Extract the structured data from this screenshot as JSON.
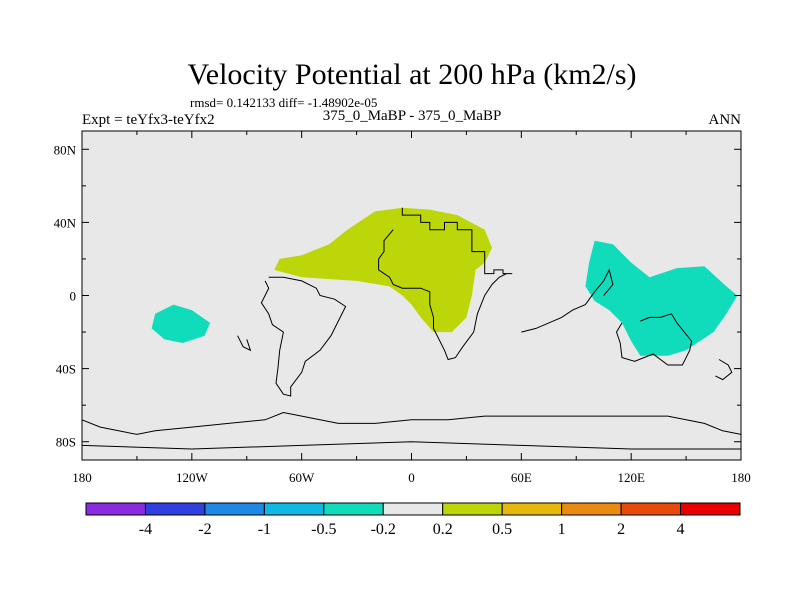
{
  "chart_data": {
    "type": "contour-map",
    "title": "Velocity Potential at 200 hPa (km2/s)",
    "stats": "rmsd= 0.142133 diff= -1.48902e-05",
    "left_label": "Expt = teYfx3-teYfx2",
    "center_label": "375_0_MaBP - 375_0_MaBP",
    "right_label": "ANN",
    "x_ticks": [
      {
        "value": -180,
        "label": "180"
      },
      {
        "value": -120,
        "label": "120W"
      },
      {
        "value": -60,
        "label": "60W"
      },
      {
        "value": 0,
        "label": "0"
      },
      {
        "value": 60,
        "label": "60E"
      },
      {
        "value": 120,
        "label": "120E"
      },
      {
        "value": 180,
        "label": "180"
      }
    ],
    "y_ticks": [
      {
        "value": 80,
        "label": "80N"
      },
      {
        "value": 40,
        "label": "40N"
      },
      {
        "value": 0,
        "label": "0"
      },
      {
        "value": -40,
        "label": "40S"
      },
      {
        "value": -80,
        "label": "80S"
      }
    ],
    "xlim": [
      -180,
      180
    ],
    "ylim": [
      -90,
      90
    ],
    "colorbar": {
      "colors": [
        "#8a2be2",
        "#2f3fe0",
        "#1e88e5",
        "#10b8e6",
        "#10dcbc",
        "#e8e8e8",
        "#bcd60a",
        "#e8b808",
        "#ea8a10",
        "#e84a0a",
        "#e80000"
      ],
      "levels": [
        "-4",
        "-2",
        "-1",
        "-0.5",
        "-0.2",
        "0.2",
        "0.5",
        "1",
        "2",
        "4"
      ]
    },
    "regions": [
      {
        "name": "positive-anomaly-africa-europe",
        "level": "0.2 to 0.5",
        "color": "#bcd60a",
        "lonlat": [
          [
            -45,
            28
          ],
          [
            -35,
            36
          ],
          [
            -20,
            46
          ],
          [
            -5,
            48
          ],
          [
            10,
            47
          ],
          [
            25,
            44
          ],
          [
            40,
            36
          ],
          [
            44,
            26
          ],
          [
            40,
            18
          ],
          [
            35,
            14
          ],
          [
            33,
            0
          ],
          [
            30,
            -12
          ],
          [
            22,
            -20
          ],
          [
            12,
            -20
          ],
          [
            5,
            -12
          ],
          [
            0,
            -5
          ],
          [
            -5,
            0
          ],
          [
            -12,
            5
          ],
          [
            -30,
            8
          ],
          [
            -60,
            10
          ],
          [
            -75,
            14
          ],
          [
            -72,
            20
          ],
          [
            -60,
            22
          ]
        ]
      },
      {
        "name": "negative-anomaly-east-pacific",
        "level": "-0.5 to -0.2",
        "color": "#10dcbc",
        "lonlat": [
          [
            -140,
            -10
          ],
          [
            -130,
            -5
          ],
          [
            -120,
            -8
          ],
          [
            -110,
            -15
          ],
          [
            -113,
            -22
          ],
          [
            -125,
            -26
          ],
          [
            -135,
            -24
          ],
          [
            -142,
            -18
          ]
        ]
      },
      {
        "name": "negative-anomaly-indo-pacific",
        "level": "-0.5 to -0.2",
        "color": "#10dcbc",
        "lonlat": [
          [
            95,
            5
          ],
          [
            97,
            18
          ],
          [
            100,
            30
          ],
          [
            110,
            28
          ],
          [
            120,
            18
          ],
          [
            130,
            10
          ],
          [
            145,
            15
          ],
          [
            160,
            16
          ],
          [
            172,
            5
          ],
          [
            178,
            0
          ],
          [
            172,
            -10
          ],
          [
            165,
            -20
          ],
          [
            150,
            -30
          ],
          [
            140,
            -33
          ],
          [
            125,
            -33
          ],
          [
            120,
            -25
          ],
          [
            115,
            -15
          ],
          [
            108,
            -8
          ],
          [
            100,
            -3
          ]
        ]
      }
    ],
    "coastlines": [
      [
        [
          -5,
          48
        ],
        [
          -5,
          44
        ],
        [
          5,
          44
        ],
        [
          5,
          40
        ],
        [
          10,
          40
        ],
        [
          10,
          36
        ],
        [
          18,
          36
        ],
        [
          18,
          40
        ],
        [
          25,
          40
        ],
        [
          25,
          36
        ],
        [
          33,
          36
        ],
        [
          33,
          24
        ],
        [
          40,
          24
        ],
        [
          40,
          12
        ],
        [
          45,
          12
        ],
        [
          45,
          14
        ],
        [
          50,
          14
        ],
        [
          50,
          12
        ],
        [
          55,
          12
        ]
      ],
      [
        [
          -10,
          36
        ],
        [
          -15,
          30
        ],
        [
          -15,
          24
        ],
        [
          -18,
          20
        ],
        [
          -18,
          14
        ],
        [
          -12,
          10
        ],
        [
          -10,
          6
        ],
        [
          -5,
          4
        ],
        [
          5,
          4
        ],
        [
          10,
          2
        ],
        [
          10,
          -5
        ],
        [
          12,
          -12
        ],
        [
          12,
          -18
        ],
        [
          18,
          -30
        ],
        [
          20,
          -35
        ],
        [
          24,
          -34
        ],
        [
          28,
          -28
        ],
        [
          34,
          -20
        ],
        [
          36,
          -10
        ],
        [
          38,
          -5
        ],
        [
          40,
          0
        ],
        [
          44,
          6
        ],
        [
          48,
          10
        ],
        [
          52,
          12
        ]
      ],
      [
        [
          -80,
          8
        ],
        [
          -78,
          4
        ],
        [
          -80,
          0
        ],
        [
          -82,
          -4
        ],
        [
          -78,
          -10
        ],
        [
          -76,
          -16
        ],
        [
          -70,
          -20
        ],
        [
          -72,
          -30
        ],
        [
          -73,
          -40
        ],
        [
          -74,
          -48
        ],
        [
          -70,
          -54
        ],
        [
          -66,
          -55
        ],
        [
          -66,
          -50
        ],
        [
          -60,
          -42
        ],
        [
          -58,
          -36
        ],
        [
          -50,
          -30
        ],
        [
          -44,
          -22
        ],
        [
          -40,
          -14
        ],
        [
          -36,
          -6
        ],
        [
          -42,
          -2
        ],
        [
          -50,
          0
        ],
        [
          -52,
          4
        ],
        [
          -60,
          8
        ],
        [
          -70,
          10
        ],
        [
          -78,
          10
        ]
      ],
      [
        [
          -95,
          -22
        ],
        [
          -92,
          -28
        ],
        [
          -88,
          -30
        ],
        [
          -90,
          -24
        ]
      ],
      [
        [
          60,
          -20
        ],
        [
          68,
          -18
        ],
        [
          75,
          -15
        ],
        [
          82,
          -12
        ],
        [
          88,
          -8
        ],
        [
          95,
          -5
        ],
        [
          100,
          2
        ],
        [
          105,
          8
        ],
        [
          108,
          14
        ],
        [
          110,
          6
        ],
        [
          105,
          0
        ]
      ],
      [
        [
          115,
          -15
        ],
        [
          112,
          -20
        ],
        [
          114,
          -26
        ],
        [
          115,
          -34
        ],
        [
          122,
          -36
        ],
        [
          132,
          -32
        ],
        [
          140,
          -38
        ],
        [
          148,
          -38
        ],
        [
          152,
          -30
        ],
        [
          153,
          -25
        ],
        [
          145,
          -15
        ],
        [
          142,
          -10
        ],
        [
          136,
          -12
        ],
        [
          130,
          -12
        ],
        [
          125,
          -14
        ]
      ],
      [
        [
          168,
          -35
        ],
        [
          173,
          -38
        ],
        [
          175,
          -42
        ],
        [
          170,
          -46
        ],
        [
          166,
          -44
        ]
      ],
      [
        [
          -180,
          -68
        ],
        [
          -170,
          -72
        ],
        [
          -160,
          -74
        ],
        [
          -150,
          -76
        ],
        [
          -140,
          -74
        ],
        [
          -120,
          -72
        ],
        [
          -100,
          -70
        ],
        [
          -80,
          -68
        ],
        [
          -70,
          -64
        ],
        [
          -60,
          -66
        ],
        [
          -40,
          -70
        ],
        [
          -20,
          -70
        ],
        [
          0,
          -68
        ],
        [
          20,
          -68
        ],
        [
          40,
          -66
        ],
        [
          60,
          -66
        ],
        [
          80,
          -66
        ],
        [
          100,
          -66
        ],
        [
          120,
          -66
        ],
        [
          140,
          -66
        ],
        [
          160,
          -70
        ],
        [
          170,
          -74
        ],
        [
          180,
          -76
        ]
      ],
      [
        [
          -180,
          -82
        ],
        [
          -120,
          -84
        ],
        [
          -60,
          -82
        ],
        [
          0,
          -80
        ],
        [
          60,
          -82
        ],
        [
          120,
          -84
        ],
        [
          180,
          -84
        ]
      ]
    ]
  }
}
